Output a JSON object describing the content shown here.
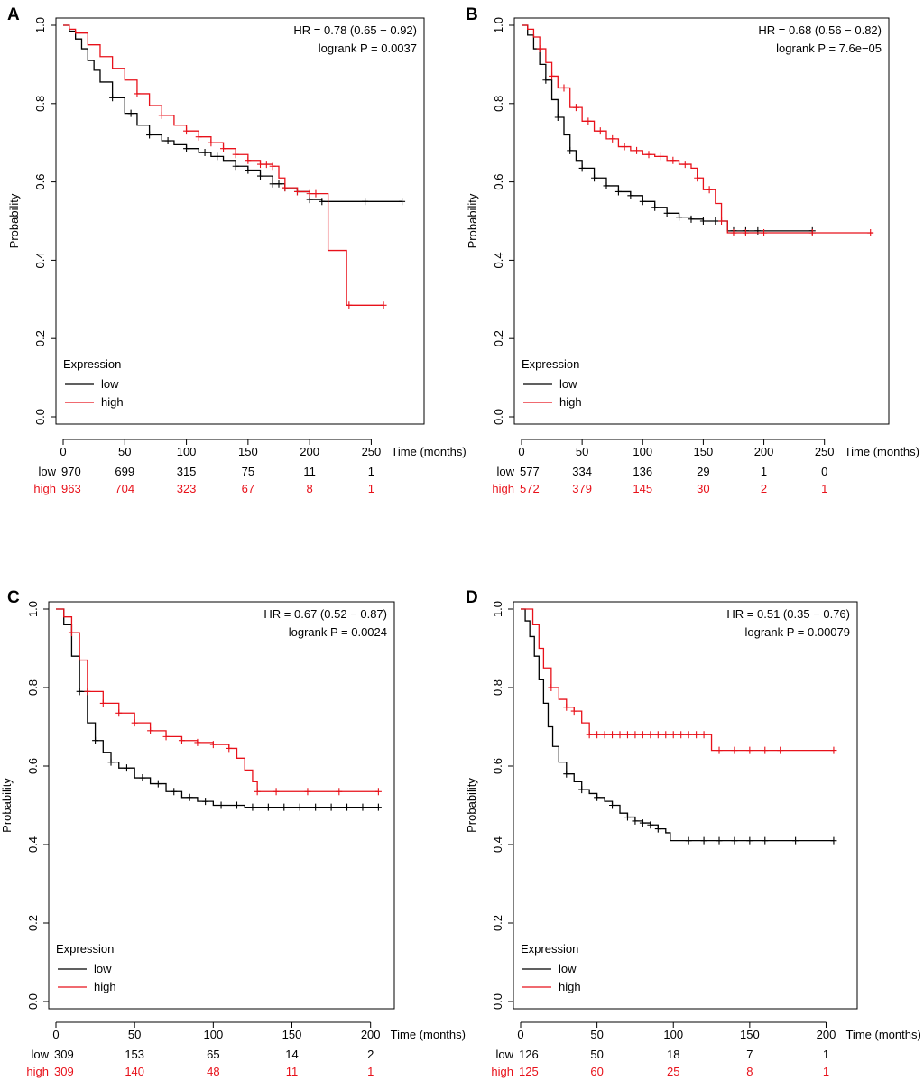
{
  "colors": {
    "low": "#000000",
    "high": "#e8111a"
  },
  "chart_data": [
    {
      "type": "line",
      "panel_label": "A",
      "ylabel": "Probability",
      "xlabel": "Time (months)",
      "xlim": [
        0,
        280
      ],
      "ylim": [
        0,
        1
      ],
      "x_ticks": [
        0,
        50,
        100,
        150,
        200,
        250
      ],
      "y_ticks": [
        0.0,
        0.2,
        0.4,
        0.6,
        0.8,
        1.0
      ],
      "y_tick_labels": [
        "0.0",
        "0.2",
        "0.4",
        "0.6",
        "0.8",
        "1.0"
      ],
      "hr_text": "HR = 0.78 (0.65 − 0.92)",
      "p_text": "logrank P = 0.0037",
      "legend_title": "Expression",
      "risk_times": [
        0,
        50,
        100,
        150,
        200,
        250
      ],
      "series": [
        {
          "name": "low",
          "risk_label": "low",
          "risk": [
            "970",
            "699",
            "315",
            "75",
            "11",
            "1"
          ],
          "x": [
            0,
            5,
            10,
            15,
            20,
            25,
            30,
            40,
            50,
            60,
            70,
            80,
            90,
            100,
            110,
            120,
            130,
            140,
            150,
            160,
            170,
            180,
            190,
            200,
            210,
            215,
            240,
            275
          ],
          "y": [
            1.0,
            0.985,
            0.965,
            0.94,
            0.91,
            0.885,
            0.855,
            0.815,
            0.775,
            0.745,
            0.72,
            0.705,
            0.695,
            0.685,
            0.675,
            0.665,
            0.655,
            0.64,
            0.63,
            0.615,
            0.595,
            0.585,
            0.575,
            0.555,
            0.55,
            0.55,
            0.55,
            0.55
          ],
          "censors": [
            40,
            55,
            70,
            85,
            100,
            115,
            125,
            140,
            150,
            160,
            170,
            175,
            180,
            190,
            200,
            210,
            245,
            275
          ]
        },
        {
          "name": "high",
          "risk_label": "high",
          "risk": [
            "963",
            "704",
            "323",
            "67",
            "8",
            "1"
          ],
          "x": [
            0,
            5,
            10,
            20,
            30,
            40,
            50,
            60,
            70,
            80,
            90,
            100,
            110,
            120,
            130,
            140,
            150,
            160,
            170,
            175,
            180,
            190,
            200,
            210,
            215,
            230,
            260
          ],
          "y": [
            1.0,
            0.99,
            0.98,
            0.95,
            0.92,
            0.89,
            0.86,
            0.825,
            0.795,
            0.77,
            0.745,
            0.73,
            0.715,
            0.7,
            0.685,
            0.67,
            0.655,
            0.645,
            0.64,
            0.61,
            0.585,
            0.575,
            0.57,
            0.57,
            0.425,
            0.285,
            0.285
          ],
          "censors": [
            60,
            80,
            100,
            110,
            120,
            130,
            140,
            150,
            160,
            165,
            170,
            180,
            190,
            200,
            205,
            232,
            260
          ]
        }
      ]
    },
    {
      "type": "line",
      "panel_label": "B",
      "ylabel": "Probability",
      "xlabel": "Time (months)",
      "xlim": [
        0,
        290
      ],
      "ylim": [
        0,
        1
      ],
      "x_ticks": [
        0,
        50,
        100,
        150,
        200,
        250
      ],
      "y_ticks": [
        0.0,
        0.2,
        0.4,
        0.6,
        0.8,
        1.0
      ],
      "y_tick_labels": [
        "0.0",
        "0.2",
        "0.4",
        "0.6",
        "0.8",
        "1.0"
      ],
      "hr_text": "HR = 0.68 (0.56 − 0.82)",
      "p_text": "logrank P = 7.6e−05",
      "legend_title": "Expression",
      "risk_times": [
        0,
        50,
        100,
        150,
        200,
        250
      ],
      "series": [
        {
          "name": "low",
          "risk_label": "low",
          "risk": [
            "577",
            "334",
            "136",
            "29",
            "1",
            "0"
          ],
          "x": [
            0,
            5,
            10,
            15,
            20,
            25,
            30,
            35,
            40,
            45,
            50,
            60,
            70,
            80,
            90,
            100,
            110,
            120,
            130,
            140,
            150,
            160,
            170,
            200,
            240
          ],
          "y": [
            1.0,
            0.975,
            0.94,
            0.9,
            0.86,
            0.81,
            0.765,
            0.72,
            0.68,
            0.655,
            0.635,
            0.61,
            0.59,
            0.575,
            0.565,
            0.55,
            0.535,
            0.52,
            0.51,
            0.505,
            0.5,
            0.5,
            0.475,
            0.475,
            0.475
          ],
          "censors": [
            20,
            30,
            40,
            50,
            60,
            70,
            80,
            90,
            100,
            110,
            120,
            130,
            140,
            150,
            160,
            175,
            185,
            195,
            240
          ]
        },
        {
          "name": "high",
          "risk_label": "high",
          "risk": [
            "572",
            "379",
            "145",
            "30",
            "2",
            "1"
          ],
          "x": [
            0,
            5,
            10,
            15,
            20,
            25,
            30,
            40,
            50,
            60,
            70,
            80,
            90,
            100,
            110,
            120,
            130,
            140,
            145,
            150,
            160,
            165,
            170,
            200,
            290
          ],
          "y": [
            1.0,
            0.99,
            0.97,
            0.94,
            0.905,
            0.87,
            0.84,
            0.79,
            0.755,
            0.73,
            0.71,
            0.69,
            0.68,
            0.67,
            0.665,
            0.655,
            0.645,
            0.635,
            0.61,
            0.58,
            0.545,
            0.5,
            0.47,
            0.47,
            0.47
          ],
          "censors": [
            15,
            25,
            35,
            45,
            55,
            65,
            75,
            85,
            95,
            105,
            115,
            125,
            135,
            145,
            155,
            165,
            175,
            185,
            200,
            240,
            288
          ]
        }
      ]
    },
    {
      "type": "line",
      "panel_label": "C",
      "ylabel": "Probability",
      "xlabel": "Time (months)",
      "xlim": [
        0,
        205
      ],
      "ylim": [
        0,
        1
      ],
      "x_ticks": [
        0,
        50,
        100,
        150,
        200
      ],
      "y_ticks": [
        0.0,
        0.2,
        0.4,
        0.6,
        0.8,
        1.0
      ],
      "y_tick_labels": [
        "0.0",
        "0.2",
        "0.4",
        "0.6",
        "0.8",
        "1.0"
      ],
      "hr_text": "HR = 0.67 (0.52 − 0.87)",
      "p_text": "logrank P = 0.0024",
      "legend_title": "Expression",
      "risk_times": [
        0,
        50,
        100,
        150,
        200
      ],
      "series": [
        {
          "name": "low",
          "risk_label": "low",
          "risk": [
            "309",
            "153",
            "65",
            "14",
            "2"
          ],
          "x": [
            0,
            5,
            10,
            15,
            20,
            25,
            30,
            35,
            40,
            50,
            60,
            70,
            80,
            90,
            100,
            120,
            150,
            205
          ],
          "y": [
            1.0,
            0.96,
            0.88,
            0.79,
            0.71,
            0.665,
            0.635,
            0.61,
            0.595,
            0.57,
            0.555,
            0.535,
            0.52,
            0.51,
            0.5,
            0.495,
            0.495,
            0.495
          ],
          "censors": [
            15,
            25,
            35,
            45,
            55,
            65,
            75,
            85,
            95,
            105,
            115,
            125,
            135,
            145,
            155,
            165,
            175,
            185,
            195,
            205
          ]
        },
        {
          "name": "high",
          "risk_label": "high",
          "risk": [
            "309",
            "140",
            "48",
            "11",
            "1"
          ],
          "x": [
            0,
            5,
            10,
            15,
            20,
            30,
            40,
            50,
            60,
            70,
            80,
            90,
            100,
            110,
            115,
            120,
            125,
            128,
            150,
            205
          ],
          "y": [
            1.0,
            0.98,
            0.94,
            0.87,
            0.79,
            0.76,
            0.735,
            0.71,
            0.69,
            0.675,
            0.665,
            0.66,
            0.655,
            0.645,
            0.62,
            0.59,
            0.56,
            0.535,
            0.535,
            0.535
          ],
          "censors": [
            10,
            20,
            30,
            40,
            50,
            60,
            70,
            80,
            90,
            100,
            110,
            128,
            140,
            160,
            180,
            205
          ]
        }
      ]
    },
    {
      "type": "line",
      "panel_label": "D",
      "ylabel": "Probability",
      "xlabel": "Time (months)",
      "xlim": [
        0,
        210
      ],
      "ylim": [
        0,
        1
      ],
      "x_ticks": [
        0,
        50,
        100,
        150,
        200
      ],
      "y_ticks": [
        0.0,
        0.2,
        0.4,
        0.6,
        0.8,
        1.0
      ],
      "y_tick_labels": [
        "0.0",
        "0.2",
        "0.4",
        "0.6",
        "0.8",
        "1.0"
      ],
      "hr_text": "HR = 0.51 (0.35 − 0.76)",
      "p_text": "logrank P = 0.00079",
      "legend_title": "Expression",
      "risk_times": [
        0,
        50,
        100,
        150,
        200
      ],
      "series": [
        {
          "name": "low",
          "risk_label": "low",
          "risk": [
            "126",
            "50",
            "18",
            "7",
            "1"
          ],
          "x": [
            0,
            3,
            6,
            9,
            12,
            15,
            18,
            21,
            25,
            30,
            35,
            40,
            45,
            50,
            55,
            60,
            65,
            70,
            75,
            80,
            85,
            90,
            95,
            98,
            120,
            150,
            205
          ],
          "y": [
            1.0,
            0.97,
            0.93,
            0.88,
            0.82,
            0.76,
            0.7,
            0.65,
            0.61,
            0.58,
            0.56,
            0.54,
            0.53,
            0.52,
            0.51,
            0.5,
            0.48,
            0.47,
            0.46,
            0.455,
            0.45,
            0.44,
            0.43,
            0.41,
            0.41,
            0.41,
            0.41
          ],
          "censors": [
            30,
            40,
            50,
            60,
            70,
            75,
            80,
            85,
            90,
            110,
            120,
            130,
            140,
            150,
            160,
            180,
            205
          ]
        },
        {
          "name": "high",
          "risk_label": "high",
          "risk": [
            "125",
            "60",
            "25",
            "8",
            "1"
          ],
          "x": [
            0,
            5,
            8,
            12,
            15,
            20,
            25,
            30,
            35,
            40,
            45,
            60,
            90,
            110,
            122,
            125,
            160,
            205
          ],
          "y": [
            1.0,
            1.0,
            0.96,
            0.9,
            0.85,
            0.8,
            0.77,
            0.75,
            0.74,
            0.71,
            0.68,
            0.68,
            0.68,
            0.68,
            0.68,
            0.64,
            0.64,
            0.64
          ],
          "censors": [
            20,
            30,
            35,
            45,
            50,
            55,
            60,
            65,
            70,
            75,
            80,
            85,
            90,
            95,
            100,
            105,
            110,
            115,
            120,
            130,
            140,
            150,
            160,
            170,
            205
          ]
        }
      ]
    }
  ]
}
